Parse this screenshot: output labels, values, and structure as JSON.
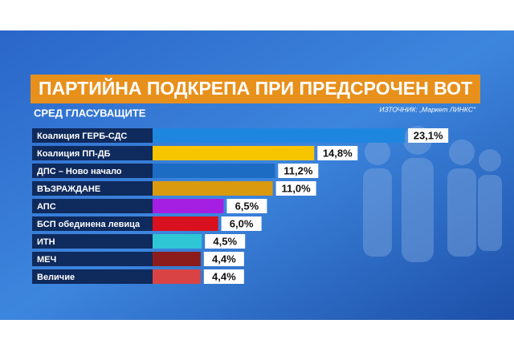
{
  "chart_data": {
    "type": "bar",
    "orientation": "horizontal",
    "title": "ПАРТИЙНА ПОДКРЕПА ПРИ ПРЕДСРОЧЕН ВОТ",
    "subtitle": "СРЕД ГЛАСУВАЩИТЕ",
    "source": "ИЗТОЧНИК: „Маркет ЛИНКС\"",
    "categories": [
      "Коалиция ГЕРБ-СДС",
      "Коалиция ПП-ДБ",
      "ДПС – Ново начало",
      "ВЪЗРАЖДАНЕ",
      "АПС",
      "БСП обединена левица",
      "ИТН",
      "МЕЧ",
      "Величие"
    ],
    "values": [
      23.1,
      14.8,
      11.2,
      11.0,
      6.5,
      6.0,
      4.5,
      4.4,
      4.4
    ],
    "value_labels": [
      "23,1%",
      "14,8%",
      "11,2%",
      "11,0%",
      "6,5%",
      "6,0%",
      "4,5%",
      "4,4%",
      "4,4%"
    ],
    "colors": [
      "#1f86e0",
      "#f6c500",
      "#1d6cc4",
      "#d99a10",
      "#a51fe3",
      "#d9101d",
      "#2fc6d6",
      "#8c1c1c",
      "#d94343"
    ]
  }
}
